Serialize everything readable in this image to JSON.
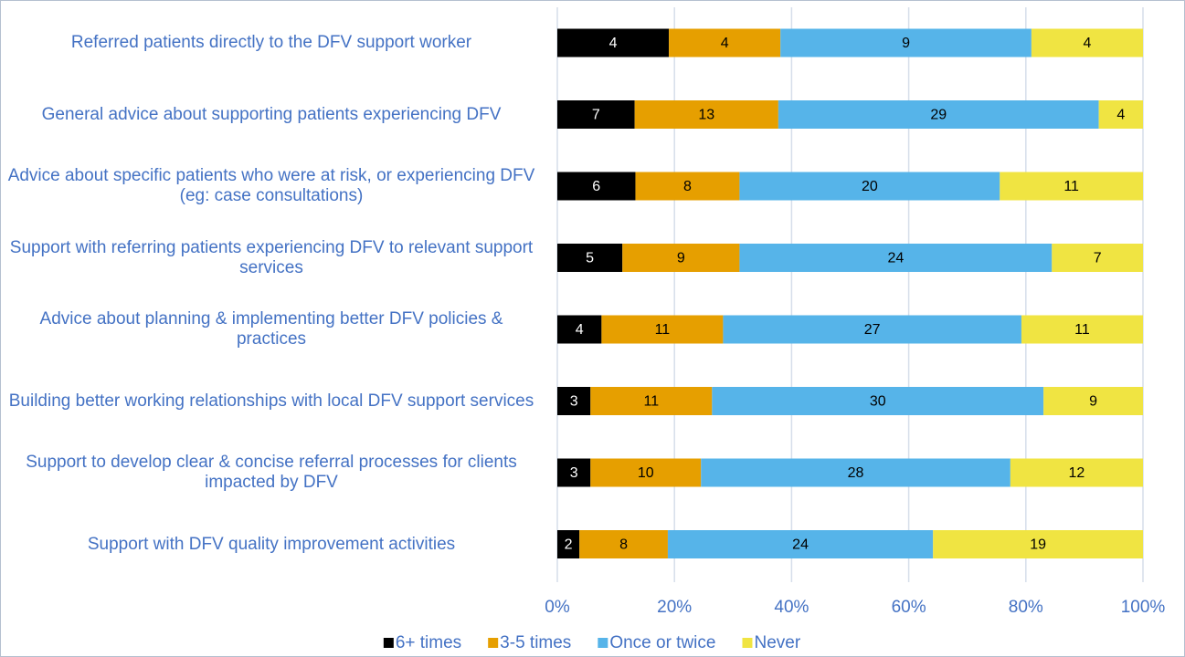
{
  "chart_data": {
    "type": "bar",
    "orientation": "horizontal",
    "stacking": "percent",
    "categories": [
      "Referred patients directly to the DFV support worker",
      "General advice about supporting patients experiencing DFV",
      "Advice about specific patients who were at risk, or experiencing DFV (eg:  case consultations)",
      "Support with referring patients experiencing DFV to relevant support services",
      "Advice about planning & implementing better DFV policies & practices",
      "Building better working relationships with local DFV support services",
      "Support to develop clear & concise referral processes for clients impacted by DFV",
      "Support with DFV quality improvement activities"
    ],
    "series": [
      {
        "name": "6+ times",
        "color": "#000000",
        "values": [
          4,
          7,
          6,
          5,
          4,
          3,
          3,
          2
        ]
      },
      {
        "name": "3-5 times",
        "color": "#e69f00",
        "values": [
          4,
          13,
          8,
          9,
          11,
          11,
          10,
          8
        ]
      },
      {
        "name": "Once or twice",
        "color": "#56b4e9",
        "values": [
          9,
          29,
          20,
          24,
          27,
          30,
          28,
          24
        ]
      },
      {
        "name": "Never",
        "color": "#f0e442",
        "values": [
          4,
          4,
          11,
          7,
          11,
          9,
          12,
          19
        ]
      }
    ],
    "xlim": [
      0,
      100
    ],
    "xticks": [
      {
        "value": 0,
        "label": "0%"
      },
      {
        "value": 20,
        "label": "20%"
      },
      {
        "value": 40,
        "label": "40%"
      },
      {
        "value": 60,
        "label": "60%"
      },
      {
        "value": 80,
        "label": "80%"
      },
      {
        "value": 100,
        "label": "100%"
      }
    ],
    "grid": true,
    "legend": "bottom"
  }
}
